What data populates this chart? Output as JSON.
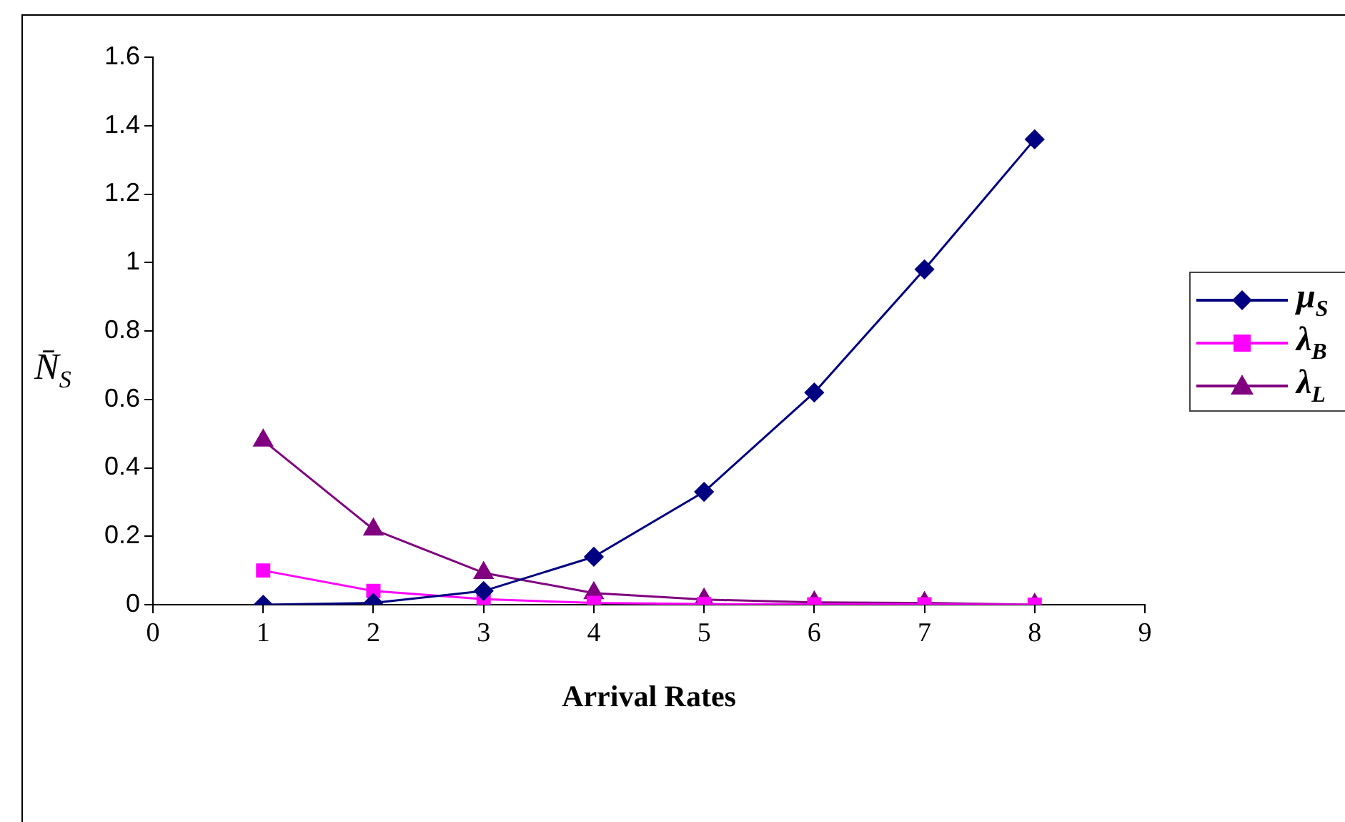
{
  "chart_data": {
    "type": "line",
    "xlabel": "Arrival Rates",
    "ylabel": "N̄$_{S}$",
    "x": [
      1,
      2,
      3,
      4,
      5,
      6,
      7,
      8
    ],
    "series": [
      {
        "name": "μ$_{S}$",
        "color": "#000080",
        "marker": "diamond",
        "values": [
          0,
          0.005,
          0.04,
          0.14,
          0.33,
          0.62,
          0.98,
          1.36
        ]
      },
      {
        "name": "λ$_{B}$",
        "color": "#ff00ff",
        "marker": "square",
        "values": [
          0.1,
          0.04,
          0.016,
          0.005,
          0.002,
          0.001,
          0.001,
          0
        ]
      },
      {
        "name": "λ$_{L}$",
        "color": "#800080",
        "marker": "triangle",
        "values": [
          0.48,
          0.22,
          0.093,
          0.034,
          0.015,
          0.007,
          0.005,
          0
        ]
      }
    ],
    "xlim": [
      0,
      9
    ],
    "xticks": [
      0,
      1,
      2,
      3,
      4,
      5,
      6,
      7,
      8,
      9
    ],
    "ylim": [
      0,
      1.6
    ],
    "yticks": [
      0,
      0.2,
      0.4,
      0.6,
      0.8,
      1,
      1.2,
      1.4,
      1.6
    ],
    "grid": false,
    "legend": "right",
    "line_style": "solid"
  }
}
